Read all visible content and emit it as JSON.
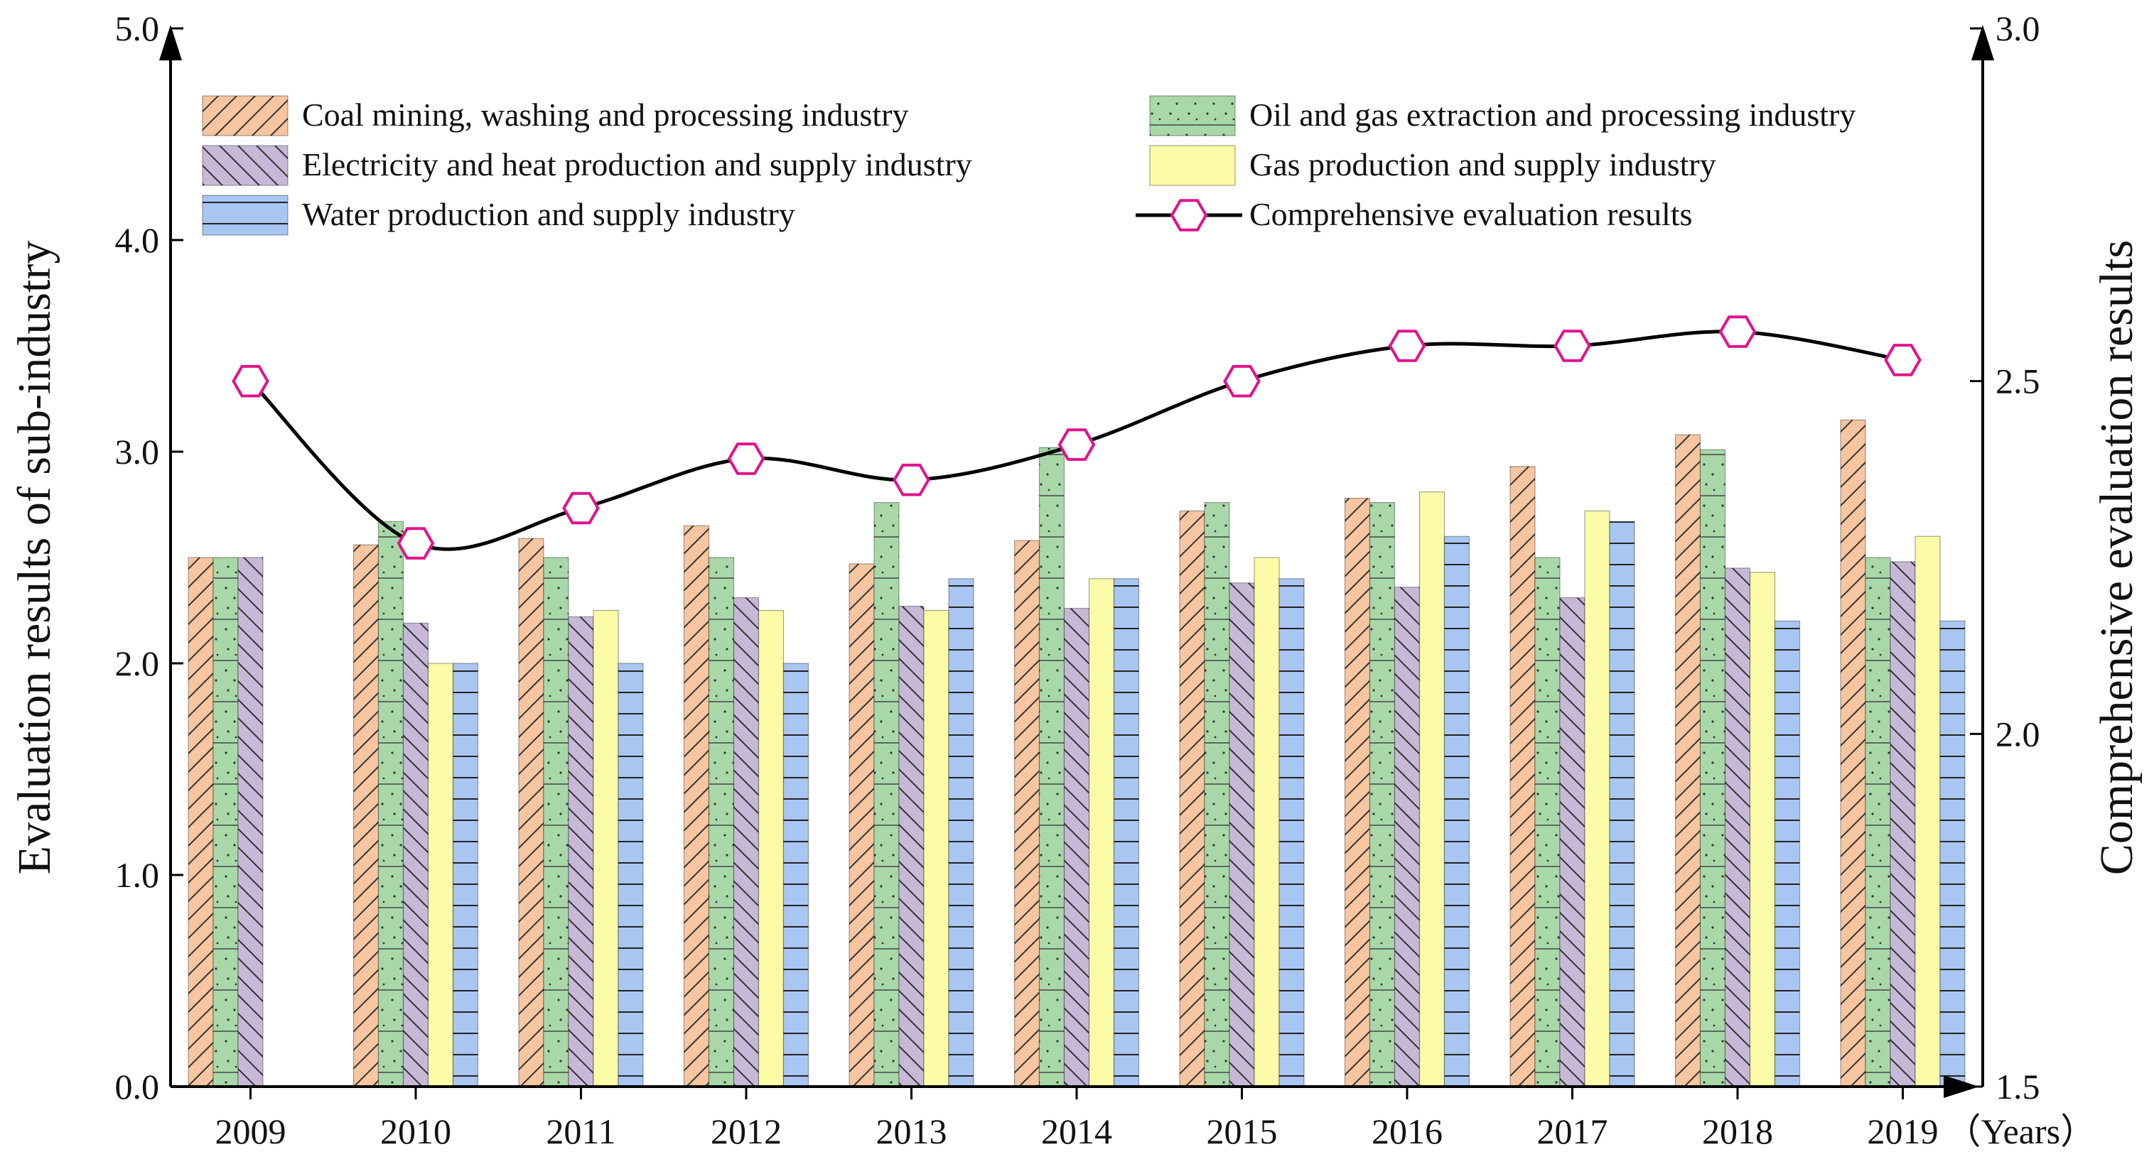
{
  "chart_data": {
    "type": "bar+line",
    "categories": [
      "2009",
      "2010",
      "2011",
      "2012",
      "2013",
      "2014",
      "2015",
      "2016",
      "2017",
      "2018",
      "2019"
    ],
    "x_unit_label": "（Years）",
    "ylabel": "Evaluation results of sub-industry",
    "y2label": "Comprehensive evaluation results",
    "ylim": [
      0,
      5
    ],
    "y_ticks": [
      "0.0",
      "1.0",
      "2.0",
      "3.0",
      "4.0",
      "5.0"
    ],
    "y2lim": [
      1.5,
      3.0
    ],
    "y2_ticks": [
      "1.5",
      "2.0",
      "2.5",
      "3.0"
    ],
    "series": [
      {
        "name": "Coal mining, washing and processing industry",
        "color": "#f7c59f",
        "pattern": "diag-right",
        "values": [
          2.5,
          2.56,
          2.59,
          2.65,
          2.47,
          2.58,
          2.72,
          2.78,
          2.93,
          3.08,
          3.15
        ]
      },
      {
        "name": "Oil and gas extraction and processing industry",
        "color": "#a8d8a8",
        "pattern": "dots-lines",
        "values": [
          2.5,
          2.67,
          2.5,
          2.5,
          2.76,
          3.02,
          2.76,
          2.76,
          2.5,
          3.01,
          2.5
        ]
      },
      {
        "name": "Electricity and heat production and supply industry",
        "color": "#c8b8d8",
        "pattern": "diag-left",
        "values": [
          2.5,
          2.19,
          2.22,
          2.31,
          2.27,
          2.26,
          2.38,
          2.36,
          2.31,
          2.45,
          2.48
        ]
      },
      {
        "name": "Gas production and supply industry",
        "color": "#fbfba8",
        "pattern": "none",
        "values": [
          null,
          2.0,
          2.25,
          2.25,
          2.25,
          2.4,
          2.5,
          2.81,
          2.72,
          2.43,
          2.6
        ]
      },
      {
        "name": "Water production and supply industry",
        "color": "#a9c6f2",
        "pattern": "horizontal",
        "values": [
          null,
          2.0,
          2.0,
          2.0,
          2.4,
          2.4,
          2.4,
          2.6,
          2.67,
          2.2,
          2.2
        ]
      }
    ],
    "line_series": {
      "name": "Comprehensive evaluation results",
      "axis": "right",
      "line_color": "#000000",
      "marker_color": "#e0138c",
      "values": [
        2.5,
        2.27,
        2.32,
        2.39,
        2.36,
        2.41,
        2.5,
        2.55,
        2.55,
        2.57,
        2.53
      ]
    },
    "legend_position": "top"
  }
}
